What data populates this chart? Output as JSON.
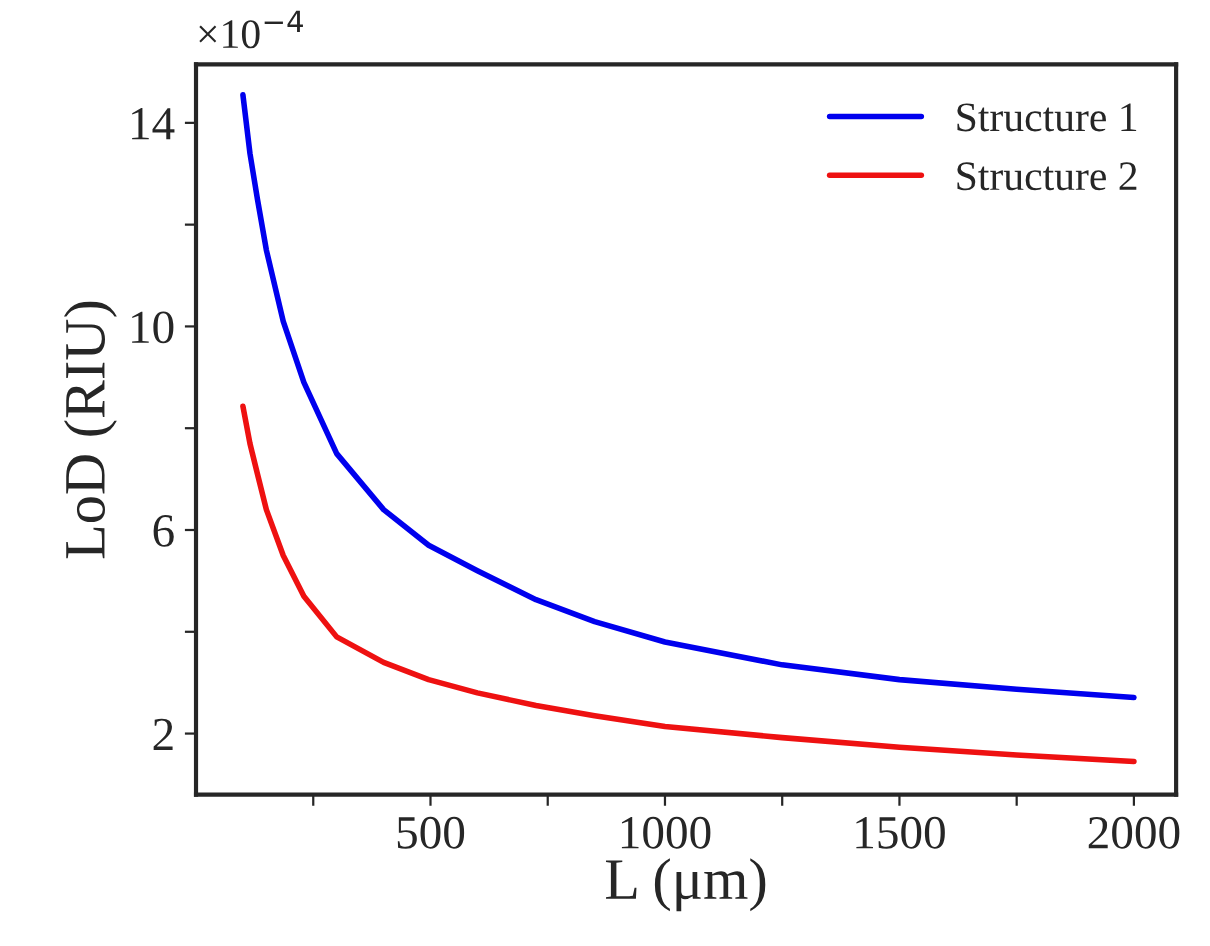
{
  "chart_data": {
    "type": "line",
    "xlabel": "L (μm)",
    "ylabel": "LoD (RIU)",
    "annotations": [
      "×10$^{−4}$"
    ],
    "xlim": [
      0,
      2090
    ],
    "ylim": [
      0.8,
      15.15
    ],
    "xticks": [
      {
        "value": 250,
        "label": null
      },
      500,
      {
        "value": 750,
        "label": null
      },
      1000,
      {
        "value": 1250,
        "label": null
      },
      1500,
      {
        "value": 1750,
        "label": null
      },
      2000
    ],
    "yticks": [
      2,
      {
        "value": 4,
        "label": null
      },
      6,
      {
        "value": 8,
        "label": null
      },
      10,
      {
        "value": 12,
        "label": null
      },
      14
    ],
    "legend": "top right",
    "grid": false,
    "series": [
      {
        "name": "Structure 1",
        "color": "#0000ee",
        "x": [
          100,
          115,
          131,
          150,
          186,
          230,
          300,
          400,
          496,
          600,
          725,
          850,
          1000,
          1250,
          1500,
          1750,
          2000
        ],
        "values": [
          14.55,
          13.4,
          12.5,
          11.5,
          10.1,
          8.9,
          7.5,
          6.4,
          5.7,
          5.2,
          4.63,
          4.2,
          3.8,
          3.35,
          3.06,
          2.87,
          2.71
        ]
      },
      {
        "name": "Structure 2",
        "color": "#ee1111",
        "x": [
          100,
          115,
          131,
          150,
          186,
          230,
          300,
          400,
          496,
          600,
          725,
          850,
          1000,
          1250,
          1500,
          1750,
          2000
        ],
        "values": [
          8.43,
          7.7,
          7.1,
          6.4,
          5.5,
          4.7,
          3.9,
          3.4,
          3.06,
          2.8,
          2.55,
          2.35,
          2.14,
          1.92,
          1.73,
          1.58,
          1.45
        ]
      }
    ]
  }
}
